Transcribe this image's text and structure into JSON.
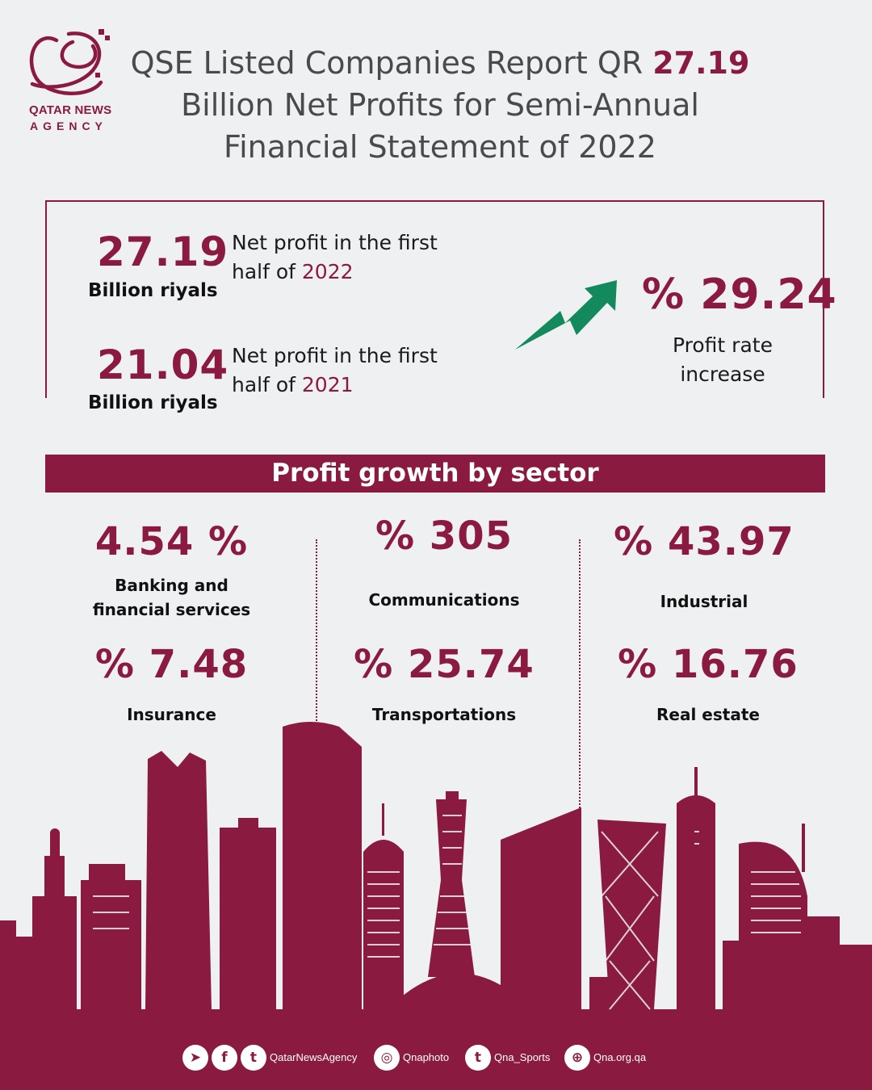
{
  "header": {
    "logo_line1": "QATAR NEWS",
    "logo_line2": "AGENCY",
    "title_pre": "QSE Listed Companies Report QR ",
    "title_value": "27.19",
    "title_line2": "Billion Net Profits for Semi-Annual",
    "title_line3": "Financial Statement of 2022"
  },
  "summary": {
    "items": [
      {
        "value": "27.19",
        "unit": "Billion riyals",
        "text_line1": "Net profit in the first",
        "text_line2_pre": "half of ",
        "year": "2022"
      },
      {
        "value": "21.04",
        "unit": "Billion riyals",
        "text_line1": "Net profit in the first",
        "text_line2_pre": "half of ",
        "year": "2021"
      }
    ],
    "increase_value": "% 29.24",
    "increase_label_line1": "Profit rate",
    "increase_label_line2": "increase"
  },
  "sectors": {
    "title": "Profit growth by sector",
    "items": [
      {
        "value": "4.54 %",
        "label_line1": "Banking and",
        "label_line2": "financial services"
      },
      {
        "value": "% 305",
        "label_line1": "Communications",
        "label_line2": ""
      },
      {
        "value": "% 43.97",
        "label_line1": "Industrial",
        "label_line2": ""
      },
      {
        "value": "% 7.48",
        "label_line1": "Insurance",
        "label_line2": ""
      },
      {
        "value": "% 25.74",
        "label_line1": "Transportations",
        "label_line2": ""
      },
      {
        "value": "% 16.76",
        "label_line1": "Real estate",
        "label_line2": ""
      }
    ]
  },
  "footer": {
    "handle_main": "QatarNewsAgency",
    "handle_photo": "Qnaphoto",
    "handle_sports": "Qna_Sports",
    "website": "Qna.org.qa",
    "icons": [
      "telegram-icon",
      "facebook-icon",
      "twitter-icon",
      "instagram-icon",
      "twitter-icon",
      "globe-icon"
    ]
  },
  "colors": {
    "brand": "#8a1a3f",
    "accent_arrow": "#138a5e",
    "background": "#eef0f2"
  }
}
